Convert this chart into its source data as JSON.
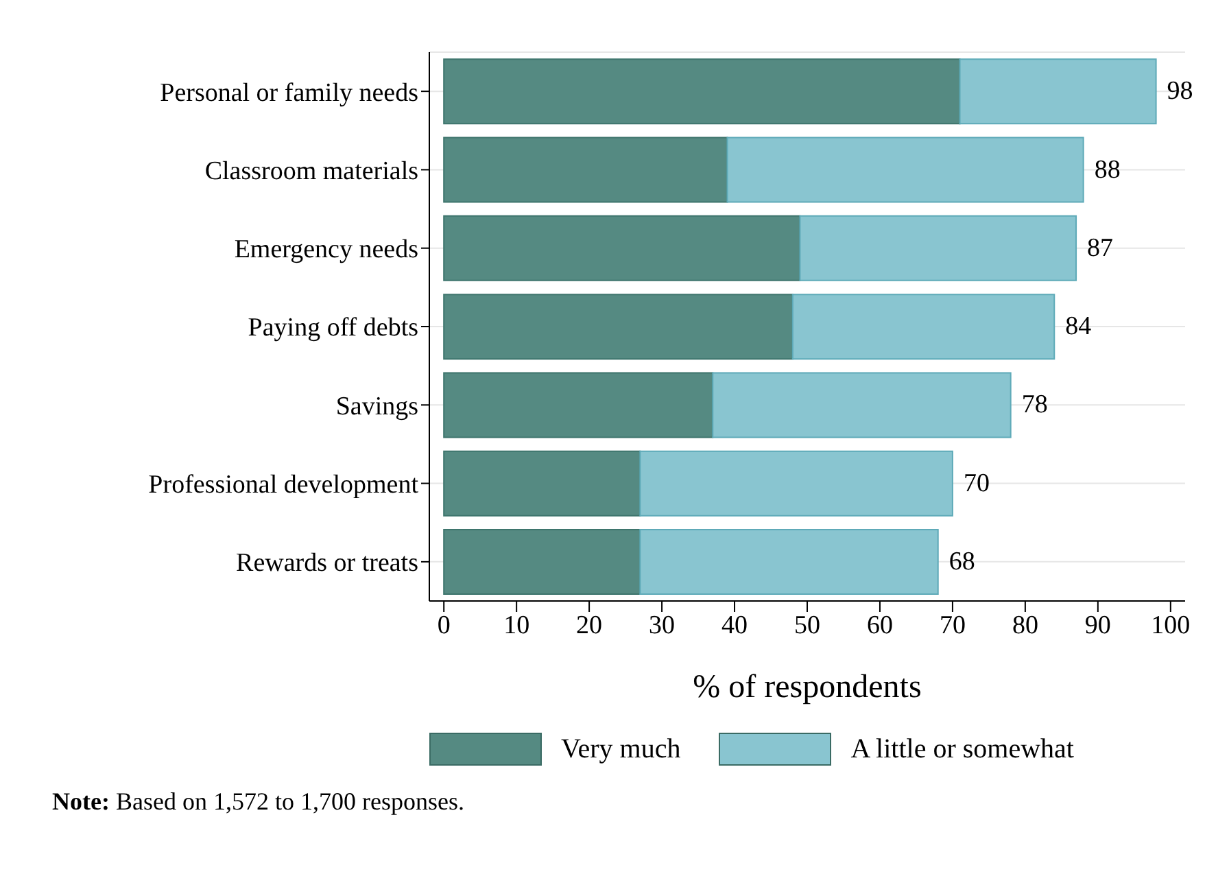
{
  "chart_data": {
    "type": "bar",
    "orientation": "horizontal",
    "stacked": true,
    "categories": [
      "Personal or family needs",
      "Classroom materials",
      "Emergency needs",
      "Paying off debts",
      "Savings",
      "Professional development",
      "Rewards or treats"
    ],
    "series": [
      {
        "name": "Very much",
        "color": "#558a82",
        "values": [
          71,
          39,
          49,
          48,
          37,
          27,
          27
        ]
      },
      {
        "name": "A little or somewhat",
        "color": "#89c5d0",
        "values": [
          27,
          49,
          38,
          36,
          41,
          43,
          41
        ]
      }
    ],
    "totals": [
      "98",
      "88",
      "87",
      "84",
      "78",
      "70",
      "68"
    ],
    "xlim": [
      -2,
      102
    ],
    "xticks": [
      0,
      10,
      20,
      30,
      40,
      50,
      60,
      70,
      80,
      90,
      100
    ],
    "xlabel": "% of respondents",
    "grid": "y",
    "legend": "bottom",
    "annotations": [
      "Note: Based on 1,572 to 1,700 responses."
    ]
  }
}
